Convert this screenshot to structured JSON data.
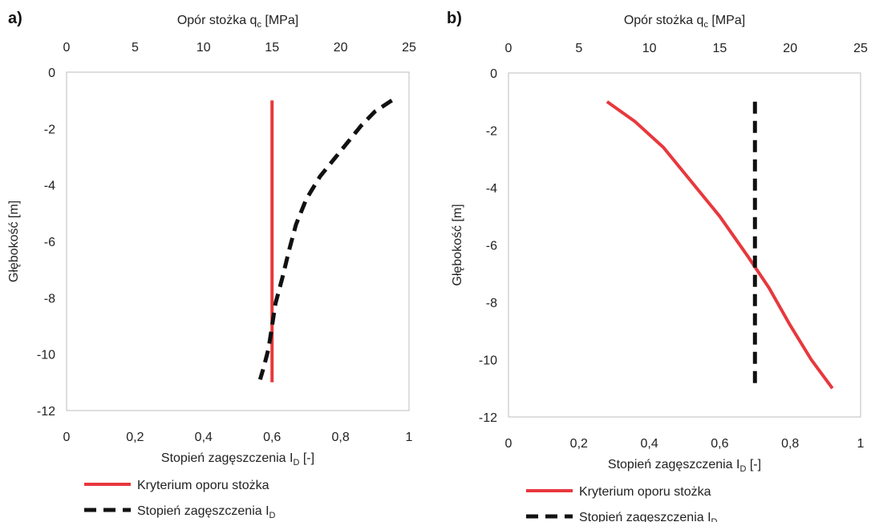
{
  "chart_data": [
    {
      "panel_label": "a)",
      "type": "line",
      "top_axis": {
        "title": "Opór stożka q",
        "subscript": "c",
        "unit": " [MPa]",
        "range": [
          0,
          25
        ],
        "ticks": [
          "0",
          "5",
          "10",
          "15",
          "20",
          "25"
        ]
      },
      "bottom_axis": {
        "title": "Stopień zagęszczenia I",
        "subscript": "D",
        "unit": " [-]",
        "range": [
          0,
          1
        ],
        "ticks": [
          "0",
          "0,2",
          "0,4",
          "0,6",
          "0,8",
          "1"
        ]
      },
      "y_axis": {
        "title": "Głębokość [m]",
        "range": [
          -12,
          0
        ],
        "ticks": [
          "0",
          "-2",
          "-4",
          "-6",
          "-8",
          "-10",
          "-12"
        ]
      },
      "series": [
        {
          "name": "Kryterium oporu stożka",
          "axis": "top",
          "color": "#e8383d",
          "dash": "solid",
          "points": [
            [
              15.0,
              -1.0
            ],
            [
              15.0,
              -11.0
            ]
          ]
        },
        {
          "name": "Stopień zagęszczenia I",
          "name_subscript": "D",
          "axis": "bottom",
          "color": "#111111",
          "dash": "dashed",
          "points": [
            [
              0.95,
              -1.0
            ],
            [
              0.9,
              -1.4
            ],
            [
              0.86,
              -1.9
            ],
            [
              0.8,
              -2.8
            ],
            [
              0.74,
              -3.7
            ],
            [
              0.7,
              -4.5
            ],
            [
              0.67,
              -5.4
            ],
            [
              0.65,
              -6.3
            ],
            [
              0.63,
              -7.3
            ],
            [
              0.61,
              -8.2
            ],
            [
              0.6,
              -9.0
            ],
            [
              0.59,
              -9.8
            ],
            [
              0.575,
              -10.5
            ],
            [
              0.565,
              -10.9
            ]
          ]
        }
      ],
      "legend_placement": "below"
    },
    {
      "panel_label": "b)",
      "type": "line",
      "top_axis": {
        "title": "Opór stożka q",
        "subscript": "c",
        "unit": " [MPa]",
        "range": [
          0,
          25
        ],
        "ticks": [
          "0",
          "5",
          "10",
          "15",
          "20",
          "25"
        ]
      },
      "bottom_axis": {
        "title": "Stopień zagęszczenia I",
        "subscript": "D",
        "unit": " [-]",
        "range": [
          0,
          1
        ],
        "ticks": [
          "0",
          "0,2",
          "0,4",
          "0,6",
          "0,8",
          "1"
        ]
      },
      "y_axis": {
        "title": "Głębokość [m]",
        "range": [
          -12,
          0
        ],
        "ticks": [
          "0",
          "-2",
          "-4",
          "-6",
          "-8",
          "-10",
          "-12"
        ]
      },
      "series": [
        {
          "name": "Kryterium oporu stożka",
          "axis": "top",
          "color": "#e8383d",
          "dash": "solid",
          "points": [
            [
              7.0,
              -1.0
            ],
            [
              9.0,
              -1.7
            ],
            [
              11.0,
              -2.6
            ],
            [
              13.0,
              -3.8
            ],
            [
              15.0,
              -5.0
            ],
            [
              17.0,
              -6.4
            ],
            [
              18.5,
              -7.5
            ],
            [
              20.0,
              -8.8
            ],
            [
              21.5,
              -10.0
            ],
            [
              23.0,
              -11.0
            ]
          ]
        },
        {
          "name": "Stopień zagęszczenia I",
          "name_subscript": "D",
          "axis": "bottom",
          "color": "#111111",
          "dash": "dashed",
          "points": [
            [
              0.7,
              -1.0
            ],
            [
              0.7,
              -11.0
            ]
          ]
        }
      ],
      "legend_placement": "below"
    }
  ]
}
